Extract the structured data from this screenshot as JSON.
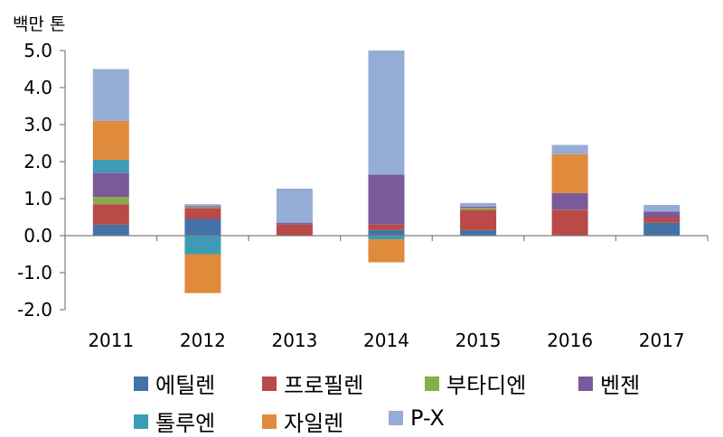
{
  "chart_data": {
    "type": "bar",
    "stacked": true,
    "y_unit_label": "백만 톤",
    "categories": [
      "2011",
      "2012",
      "2013",
      "2014",
      "2015",
      "2016",
      "2017"
    ],
    "y_ticks": [
      "5.0",
      "4.0",
      "3.0",
      "2.0",
      "1.0",
      "0.0",
      "-1.0",
      "-2.0"
    ],
    "ylim": [
      -2.0,
      5.0
    ],
    "grid": false,
    "legend_position": "bottom",
    "series": [
      {
        "name": "에틸렌",
        "color": "#4472a8",
        "values": [
          0.3,
          0.45,
          0.0,
          0.15,
          0.15,
          0.0,
          0.35
        ]
      },
      {
        "name": "프로필렌",
        "color": "#b94a48",
        "values": [
          0.55,
          0.3,
          0.3,
          0.15,
          0.55,
          0.7,
          0.15
        ]
      },
      {
        "name": "부타디엔",
        "color": "#8aab4a",
        "values": [
          0.2,
          0.02,
          0.0,
          0.0,
          0.05,
          0.0,
          0.0
        ]
      },
      {
        "name": "벤젠",
        "color": "#7a5a9b",
        "values": [
          0.65,
          0.03,
          0.05,
          1.35,
          0.03,
          0.45,
          0.15
        ]
      },
      {
        "name": "톨루엔",
        "color": "#3e9bb6",
        "values": [
          0.35,
          -0.5,
          0.0,
          -0.1,
          0.0,
          0.0,
          0.0
        ]
      },
      {
        "name": "자일렌",
        "color": "#e08a3c",
        "values": [
          1.05,
          -1.05,
          0.0,
          -0.62,
          0.0,
          1.05,
          0.0
        ]
      },
      {
        "name": "P-X",
        "color": "#95acd4",
        "values": [
          1.4,
          0.05,
          0.92,
          3.35,
          0.1,
          0.25,
          0.18
        ]
      }
    ]
  }
}
